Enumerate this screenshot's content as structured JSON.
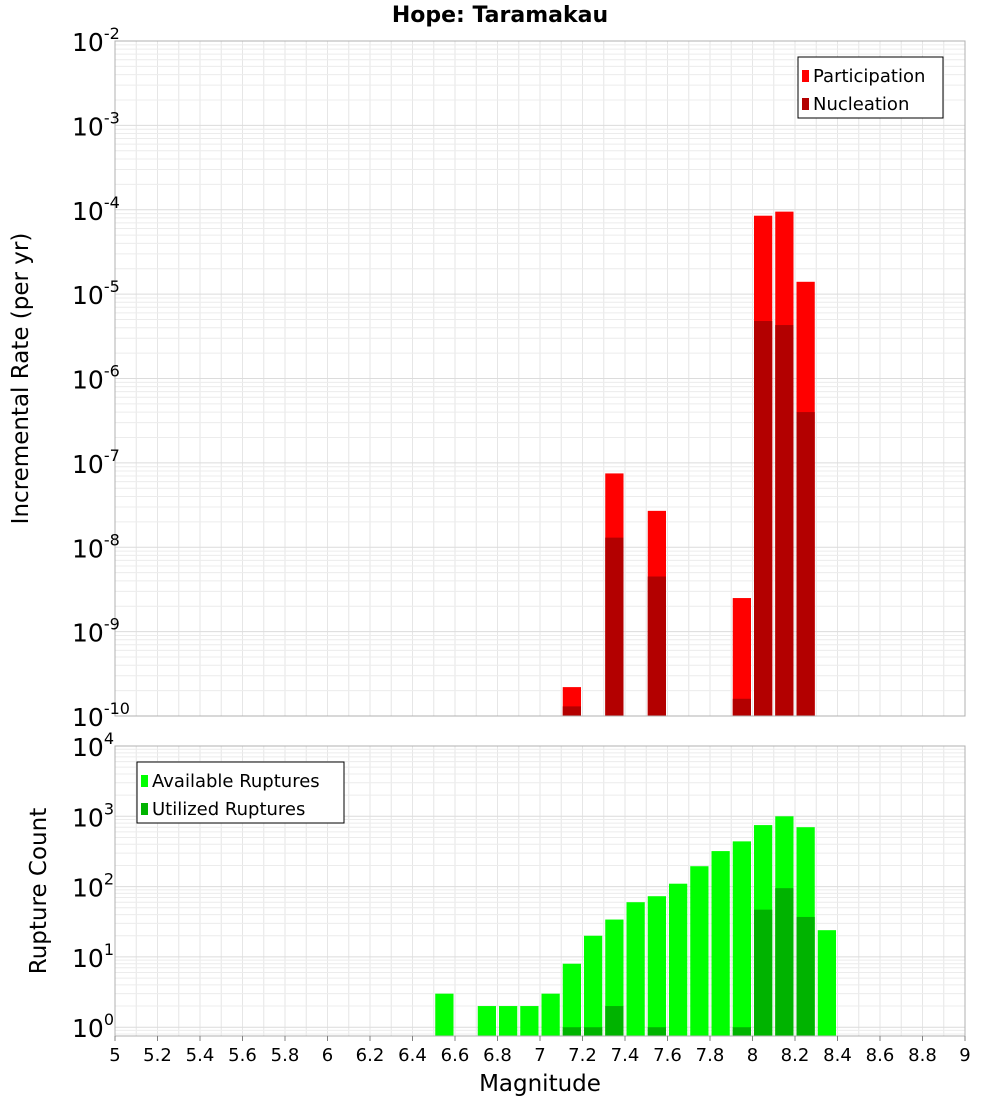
{
  "title": "Hope: Taramakau",
  "x_axis": {
    "label": "Magnitude",
    "range": [
      5,
      9
    ],
    "tick_labels": [
      "5",
      "5.2",
      "5.4",
      "5.6",
      "5.8",
      "6",
      "6.2",
      "6.4",
      "6.6",
      "6.8",
      "7",
      "7.2",
      "7.4",
      "7.6",
      "7.8",
      "8",
      "8.2",
      "8.4",
      "8.6",
      "8.8",
      "9"
    ]
  },
  "colors": {
    "participation": "#ff0000",
    "nucleation": "#b30000",
    "available": "#00ff00",
    "utilized": "#00b300",
    "grid": "#e6e6e6",
    "frame": "#b0b0b0"
  },
  "chart_data": [
    {
      "type": "bar",
      "panel": "top",
      "ylabel": "Incremental Rate (per yr)",
      "yscale": "log",
      "ylim": [
        1e-10,
        0.01
      ],
      "ytick_labels": [
        {
          "base": "10",
          "exp": "-10"
        },
        {
          "base": "10",
          "exp": "-9"
        },
        {
          "base": "10",
          "exp": "-8"
        },
        {
          "base": "10",
          "exp": "-7"
        },
        {
          "base": "10",
          "exp": "-6"
        },
        {
          "base": "10",
          "exp": "-5"
        },
        {
          "base": "10",
          "exp": "-4"
        },
        {
          "base": "10",
          "exp": "-3"
        },
        {
          "base": "10",
          "exp": "-2"
        }
      ],
      "legend_position": "top-right",
      "x": [
        7.15,
        7.35,
        7.55,
        7.95,
        8.05,
        8.15,
        8.25
      ],
      "series": [
        {
          "name": "Participation",
          "color_key": "participation",
          "values": [
            2.2e-10,
            7.5e-08,
            2.7e-08,
            2.5e-09,
            8.5e-05,
            9.5e-05,
            1.4e-05
          ]
        },
        {
          "name": "Nucleation",
          "color_key": "nucleation",
          "values": [
            1.3e-10,
            1.3e-08,
            4.5e-09,
            1.6e-10,
            4.8e-06,
            4.3e-06,
            4e-07
          ]
        }
      ]
    },
    {
      "type": "bar",
      "panel": "bottom",
      "ylabel": "Rupture Count",
      "yscale": "log",
      "ylim": [
        0.75,
        10000
      ],
      "ytick_labels": [
        {
          "base": "10",
          "exp": "0"
        },
        {
          "base": "10",
          "exp": "1"
        },
        {
          "base": "10",
          "exp": "2"
        },
        {
          "base": "10",
          "exp": "3"
        },
        {
          "base": "10",
          "exp": "4"
        }
      ],
      "legend_position": "top-left",
      "x": [
        6.55,
        6.75,
        6.85,
        6.95,
        7.05,
        7.15,
        7.25,
        7.35,
        7.45,
        7.55,
        7.65,
        7.75,
        7.85,
        7.95,
        8.05,
        8.15,
        8.25,
        8.35
      ],
      "series": [
        {
          "name": "Available Ruptures",
          "color_key": "available",
          "values": [
            3,
            2,
            2,
            2,
            3,
            8,
            20,
            34,
            60,
            73,
            110,
            195,
            320,
            440,
            750,
            1000,
            700,
            24
          ]
        },
        {
          "name": "Utilized Ruptures",
          "color_key": "utilized",
          "values": [
            0,
            0,
            0,
            0,
            0,
            1,
            1,
            2,
            0,
            1,
            0,
            0,
            0,
            1,
            47,
            95,
            37,
            0
          ]
        }
      ]
    }
  ]
}
